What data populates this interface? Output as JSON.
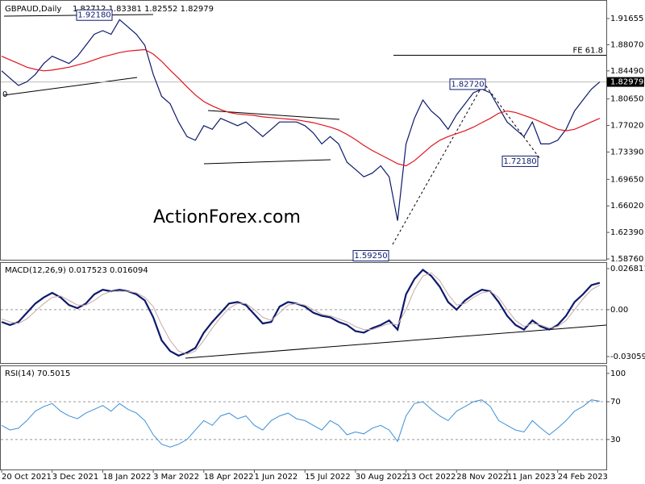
{
  "chart_data": [
    {
      "type": "line",
      "title": "GBPAUD,Daily",
      "subtitle": "1.82712 1.83381 1.82552 1.82979",
      "watermark": "ActionForex.com",
      "categories": [
        "20 Oct 2021",
        null,
        null,
        null,
        null,
        null,
        "3 Dec 2021",
        null,
        null,
        null,
        null,
        null,
        "18 Jan 2022",
        null,
        null,
        null,
        null,
        null,
        "3 Mar 2022",
        null,
        null,
        null,
        null,
        null,
        "18 Apr 2022",
        null,
        null,
        null,
        null,
        null,
        "1 Jun 2022",
        null,
        null,
        null,
        null,
        null,
        "15 Jul 2022",
        null,
        null,
        null,
        null,
        null,
        "30 Aug 2022",
        null,
        null,
        null,
        null,
        null,
        "13 Oct 2022",
        null,
        null,
        null,
        null,
        null,
        "28 Nov 2022",
        null,
        null,
        null,
        null,
        null,
        "11 Jan 2023",
        null,
        null,
        null,
        null,
        null,
        "24 Feb 2023",
        null,
        null,
        null,
        null,
        null
      ],
      "series": [
        {
          "color": "#0d1a6b",
          "values": [
            1.845,
            1.835,
            1.825,
            1.83,
            1.84,
            1.855,
            1.865,
            1.86,
            1.855,
            1.865,
            1.88,
            1.895,
            1.9,
            1.895,
            1.915,
            1.905,
            1.895,
            1.88,
            1.84,
            1.81,
            1.8,
            1.775,
            1.755,
            1.75,
            1.77,
            1.765,
            1.78,
            1.775,
            1.77,
            1.775,
            1.765,
            1.755,
            1.765,
            1.775,
            1.775,
            1.775,
            1.77,
            1.76,
            1.745,
            1.755,
            1.745,
            1.72,
            1.71,
            1.7,
            1.705,
            1.715,
            1.7,
            1.64,
            1.745,
            1.78,
            1.805,
            1.79,
            1.78,
            1.765,
            1.785,
            1.8,
            1.815,
            1.82,
            1.815,
            1.795,
            1.775,
            1.765,
            1.755,
            1.775,
            1.745,
            1.745,
            1.75,
            1.765,
            1.79,
            1.805,
            1.82,
            1.82979
          ]
        },
        {
          "color": "#e0141e",
          "values": [
            1.865,
            1.86,
            1.855,
            1.85,
            1.847,
            1.845,
            1.846,
            1.848,
            1.85,
            1.853,
            1.856,
            1.86,
            1.864,
            1.867,
            1.87,
            1.872,
            1.873,
            1.874,
            1.868,
            1.858,
            1.846,
            1.835,
            1.823,
            1.812,
            1.803,
            1.797,
            1.792,
            1.788,
            1.786,
            1.785,
            1.784,
            1.782,
            1.781,
            1.78,
            1.779,
            1.778,
            1.776,
            1.774,
            1.771,
            1.768,
            1.764,
            1.758,
            1.751,
            1.743,
            1.736,
            1.73,
            1.724,
            1.718,
            1.715,
            1.722,
            1.732,
            1.742,
            1.75,
            1.755,
            1.759,
            1.763,
            1.768,
            1.774,
            1.78,
            1.787,
            1.79,
            1.788,
            1.784,
            1.78,
            1.775,
            1.77,
            1.765,
            1.763,
            1.765,
            1.77,
            1.775,
            1.78
          ]
        }
      ],
      "ylim": [
        1.5876,
        1.9364
      ],
      "yticks": [
        1.91655,
        {
          "value": 1.8807,
          "label": "1.88070"
        },
        {
          "value": 1.8449,
          "label": "1.84490"
        },
        {
          "value": 1.8065,
          "label": "1.80650"
        },
        {
          "value": 1.7702,
          "label": "1.77020"
        },
        {
          "value": 1.7339,
          "label": "1.73390"
        },
        {
          "value": 1.6965,
          "label": "1.69650"
        },
        {
          "value": 1.6602,
          "label": "1.66020"
        },
        {
          "value": 1.6239,
          "label": "1.62390"
        },
        {
          "value": 1.5876,
          "label": "1.58760"
        }
      ],
      "last_price": 1.82979,
      "level": {
        "value": 1.8663,
        "label": "FE 61.8"
      },
      "annotations": [
        {
          "value": 1.9218,
          "label": "1.92180"
        },
        {
          "value": 1.8272,
          "label": "1.82720"
        },
        {
          "value": 1.7218,
          "label": "1.72180"
        },
        {
          "value": 1.5925,
          "label": "1.59250"
        }
      ],
      "edge_label": "0"
    },
    {
      "type": "line",
      "title": "MACD(12,26,9) 0.017523 0.016094",
      "series": [
        {
          "color": "#0d1a6b",
          "values": [
            -0.008,
            -0.01,
            -0.008,
            -0.002,
            0.004,
            0.008,
            0.011,
            0.008,
            0.003,
            0.001,
            0.004,
            0.01,
            0.013,
            0.012,
            0.013,
            0.012,
            0.01,
            0.006,
            -0.005,
            -0.02,
            -0.027,
            -0.03,
            -0.028,
            -0.025,
            -0.015,
            -0.008,
            -0.002,
            0.004,
            0.005,
            0.003,
            -0.003,
            -0.009,
            -0.008,
            0.002,
            0.005,
            0.004,
            0.002,
            -0.002,
            -0.004,
            -0.005,
            -0.008,
            -0.01,
            -0.014,
            -0.015,
            -0.012,
            -0.01,
            -0.007,
            -0.013,
            0.01,
            0.02,
            0.026,
            0.022,
            0.015,
            0.005,
            0.0,
            0.006,
            0.01,
            0.013,
            0.012,
            0.005,
            -0.004,
            -0.01,
            -0.013,
            -0.007,
            -0.011,
            -0.013,
            -0.01,
            -0.004,
            0.005,
            0.01,
            0.016,
            0.017523
          ]
        },
        {
          "color": "#c8a8a8",
          "values": [
            -0.006,
            -0.008,
            -0.009,
            -0.006,
            -0.001,
            0.004,
            0.008,
            0.009,
            0.006,
            0.003,
            0.003,
            0.006,
            0.01,
            0.012,
            0.012,
            0.012,
            0.011,
            0.008,
            0.002,
            -0.01,
            -0.02,
            -0.027,
            -0.029,
            -0.027,
            -0.02,
            -0.012,
            -0.005,
            0.001,
            0.004,
            0.004,
            0.0,
            -0.005,
            -0.007,
            -0.002,
            0.003,
            0.004,
            0.003,
            0.0,
            -0.003,
            -0.004,
            -0.006,
            -0.008,
            -0.011,
            -0.013,
            -0.013,
            -0.011,
            -0.009,
            -0.01,
            0.0,
            0.013,
            0.022,
            0.024,
            0.019,
            0.01,
            0.003,
            0.004,
            0.008,
            0.011,
            0.012,
            0.008,
            0.0,
            -0.007,
            -0.011,
            -0.009,
            -0.01,
            -0.012,
            -0.011,
            -0.007,
            0.0,
            0.007,
            0.013,
            0.016094
          ]
        }
      ],
      "ylim": [
        -0.03323,
        0.02839
      ],
      "yticks": [
        0.026811,
        {
          "value": 0,
          "label": "0.00"
        },
        -0.030592
      ]
    },
    {
      "type": "line",
      "title": "RSI(14) 70.5015",
      "series": [
        {
          "color": "#3b8fd9",
          "values": [
            45,
            40,
            42,
            50,
            60,
            65,
            68,
            60,
            55,
            52,
            58,
            62,
            66,
            60,
            68,
            62,
            58,
            50,
            35,
            25,
            22,
            25,
            30,
            40,
            50,
            45,
            55,
            58,
            52,
            55,
            45,
            40,
            50,
            55,
            58,
            52,
            50,
            45,
            40,
            50,
            45,
            35,
            38,
            36,
            42,
            45,
            40,
            28,
            55,
            68,
            70,
            62,
            55,
            50,
            60,
            65,
            70,
            72,
            65,
            50,
            45,
            40,
            38,
            50,
            42,
            35,
            42,
            50,
            60,
            65,
            72,
            70.5015
          ]
        }
      ],
      "ylim": [
        0,
        105
      ],
      "yticks": [
        30,
        70,
        100
      ]
    }
  ]
}
